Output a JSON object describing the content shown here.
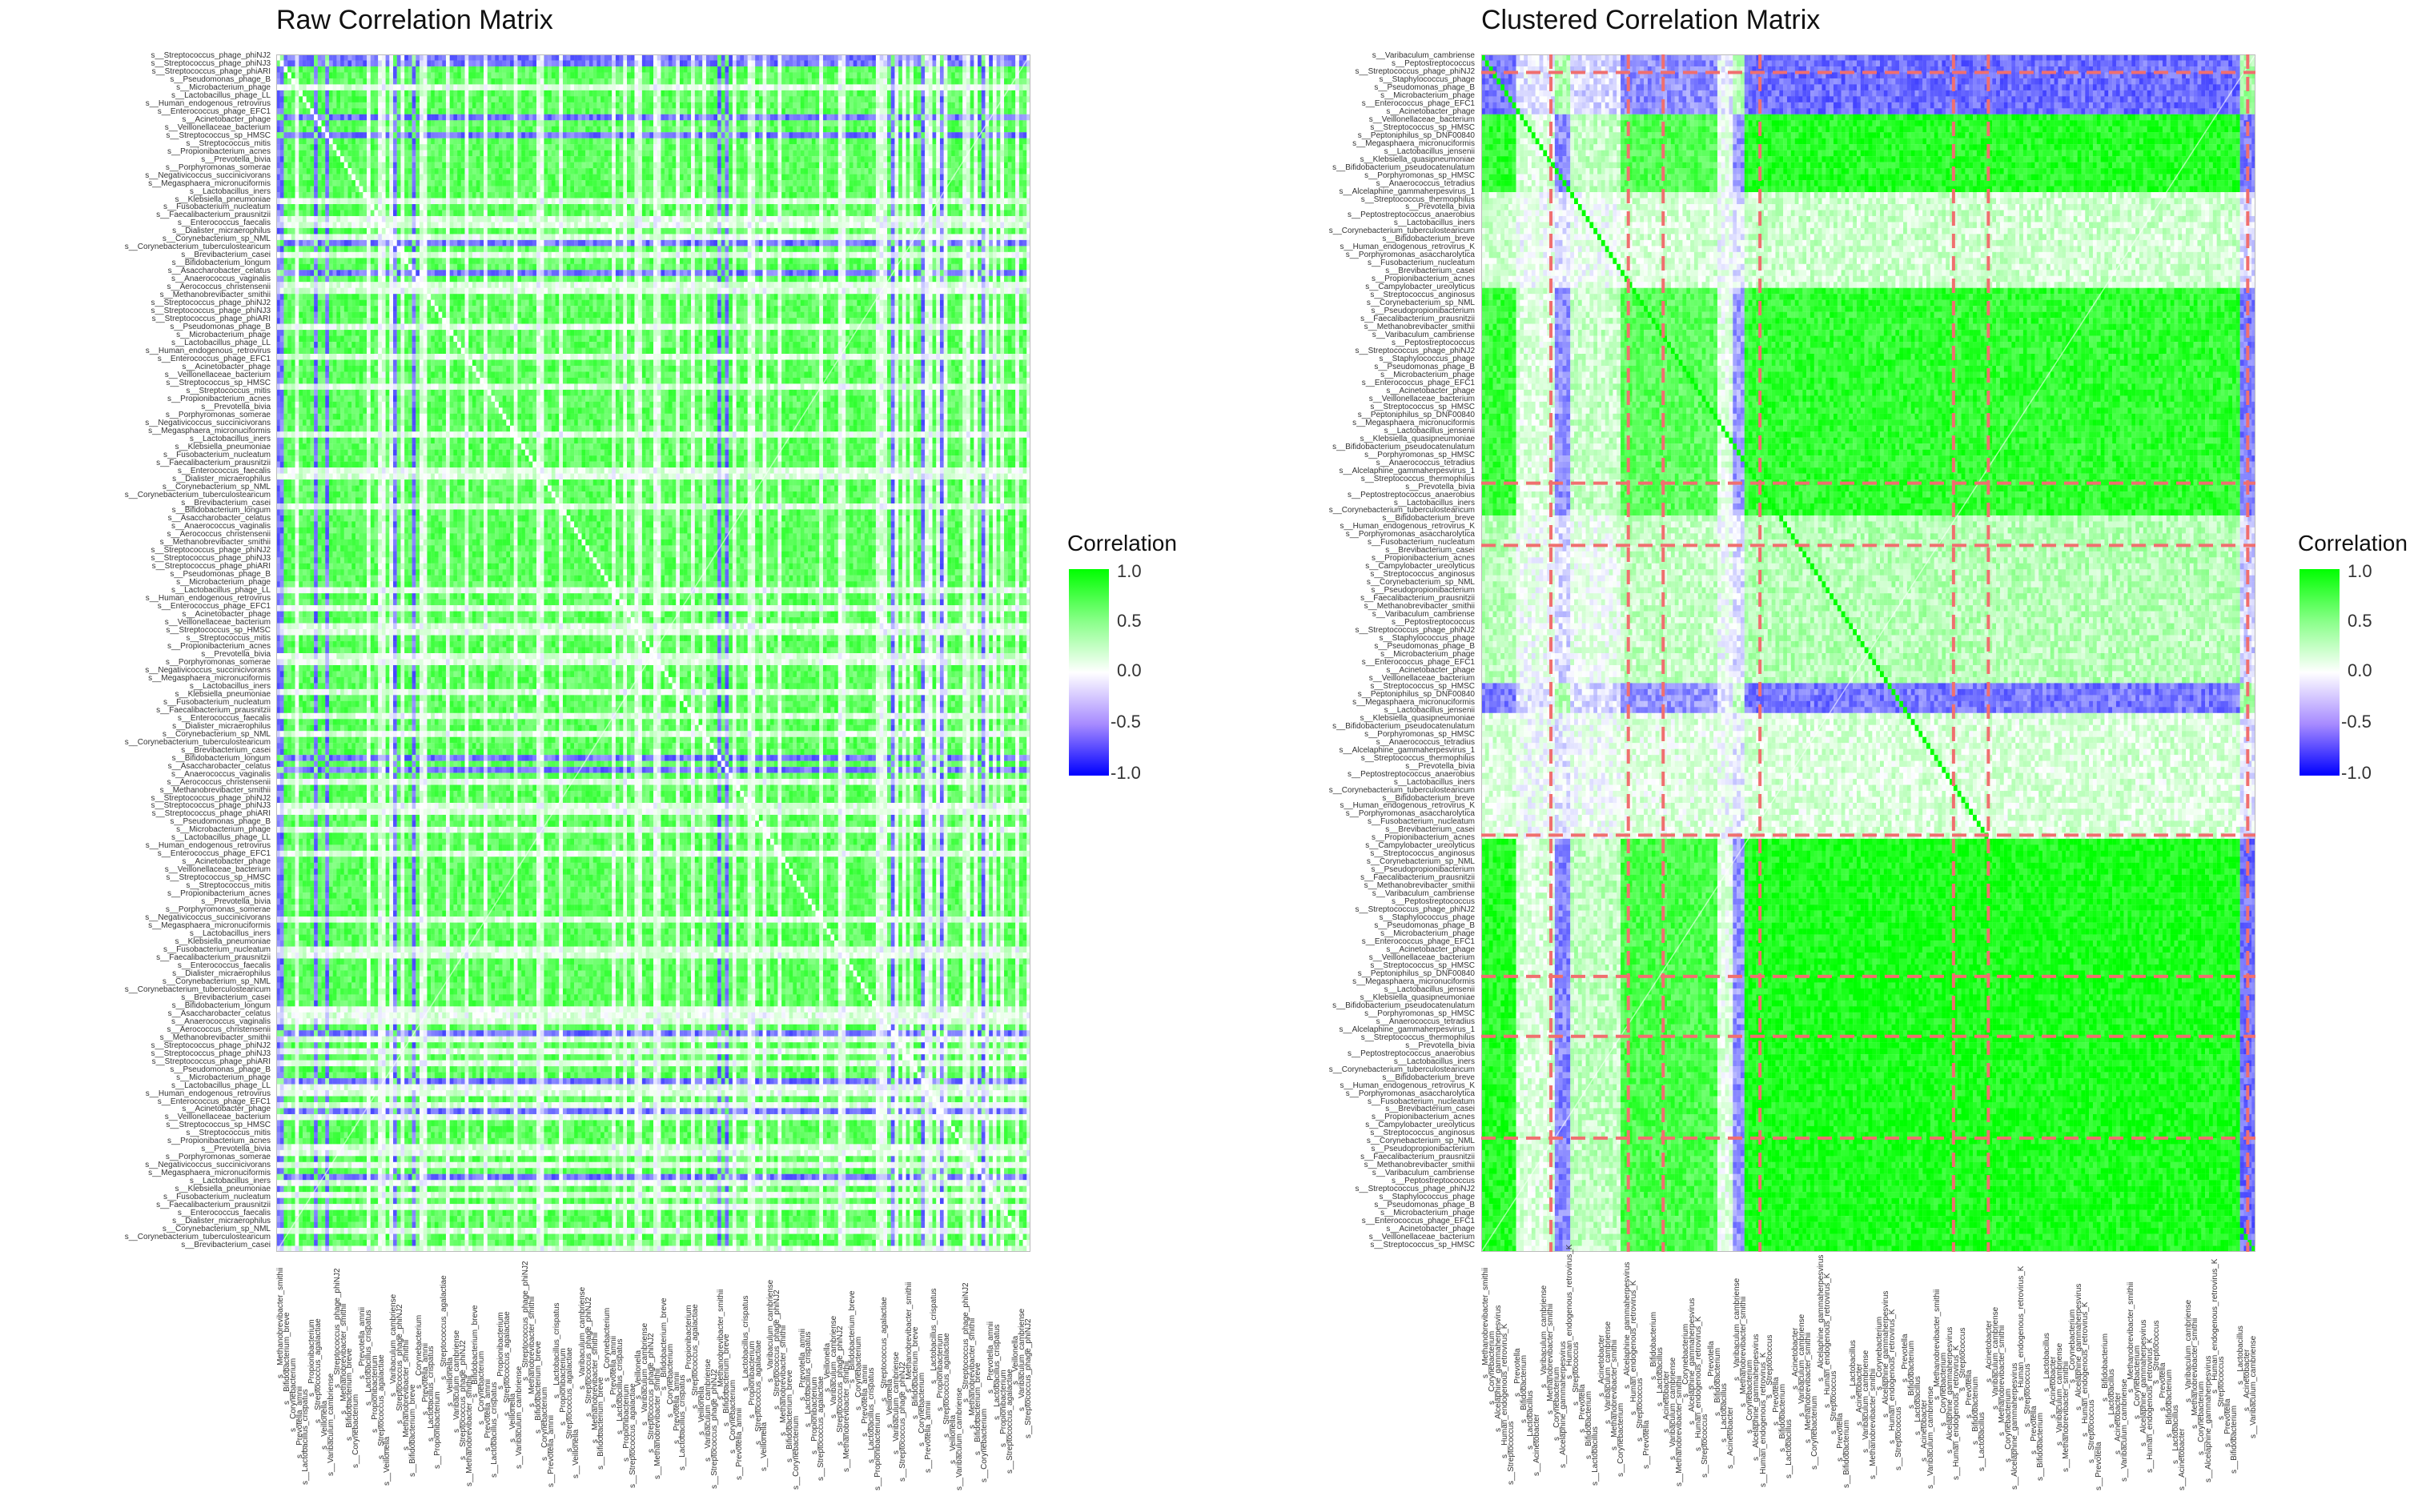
{
  "chart_data": [
    {
      "type": "heatmap",
      "title": "Raw Correlation Matrix",
      "n": 200,
      "colorscale": {
        "low": "#0000ff",
        "mid": "#ffffff",
        "high": "#00ff00",
        "limits": [
          -1,
          1
        ]
      },
      "legend": {
        "title": "Correlation",
        "ticks": [
          "1.0",
          "0.5",
          "0.0",
          "-0.5",
          "-1.0"
        ],
        "position": "right"
      },
      "row_labels": [
        "s__Streptococcus_phage_phiNJ2",
        "s__Streptococcus_phage_phiNJ3",
        "s__Streptococcus_phage_phiARI",
        "s__Pseudomonas_phage_B",
        "s__Microbacterium_phage",
        "s__Lactobacillus_phage_LL",
        "s__Human_endogenous_retrovirus",
        "s__Enterococcus_phage_EFC1",
        "s__Acinetobacter_phage",
        "s__Veillonellaceae_bacterium",
        "s__Streptococcus_sp_HMSC",
        "s__Streptococcus_mitis",
        "s__Propionibacterium_acnes",
        "s__Prevotella_bivia",
        "s__Porphyromonas_somerae",
        "s__Negativicoccus_succinicivorans",
        "s__Megasphaera_micronuciformis",
        "s__Lactobacillus_iners",
        "s__Klebsiella_pneumoniae",
        "s__Fusobacterium_nucleatum",
        "s__Faecalibacterium_prausnitzii",
        "s__Enterococcus_faecalis",
        "s__Dialister_micraerophilus",
        "s__Corynebacterium_sp_NML",
        "s__Corynebacterium_tuberculostearicum",
        "s__Brevibacterium_casei",
        "s__Bifidobacterium_longum",
        "s__Asaccharobacter_celatus",
        "s__Anaerococcus_vaginalis",
        "s__Aerococcus_christensenii",
        "s__Methanobrevibacter_smithii"
      ],
      "x_labels": [
        "s__Methanobrevibacter_smithii",
        "s__Bifidobacterium_breve",
        "s__Corynebacterium",
        "s__Prevotella_amnii",
        "s__Lactobacillus_crispatus",
        "s__Propionibacterium",
        "s__Streptococcus_agalactiae",
        "s__Veillonella",
        "s__Varibaculum_cambriense",
        "s__Streptococcus_phage_phiNJ2"
      ]
    },
    {
      "type": "heatmap",
      "title": "Clustered Correlation Matrix",
      "n": 200,
      "colorscale": {
        "low": "#0000ff",
        "mid": "#ffffff",
        "high": "#00ff00",
        "limits": [
          -1,
          1
        ]
      },
      "legend": {
        "title": "Correlation",
        "ticks": [
          "1.0",
          "0.5",
          "0.0",
          "-0.5",
          "-1.0"
        ],
        "position": "right"
      },
      "row_labels": [
        "s__Varibaculum_cambriense",
        "s__Peptostreptococcus",
        "s__Streptococcus_phage_phiNJ2",
        "s__Staphylococcus_phage",
        "s__Pseudomonas_phage_B",
        "s__Microbacterium_phage",
        "s__Enterococcus_phage_EFC1",
        "s__Acinetobacter_phage",
        "s__Veillonellaceae_bacterium",
        "s__Streptococcus_sp_HMSC",
        "s__Peptoniphilus_sp_DNF00840",
        "s__Megasphaera_micronuciformis",
        "s__Lactobacillus_jensenii",
        "s__Klebsiella_quasipneumoniae",
        "s__Bifidobacterium_pseudocatenulatum",
        "s__Porphyromonas_sp_HMSC",
        "s__Anaerococcus_tetradius",
        "s__Alcelaphine_gammaherpesvirus_1",
        "s__Streptococcus_thermophilus",
        "s__Prevotella_bivia",
        "s__Peptostreptococcus_anaerobius",
        "s__Lactobacillus_iners",
        "s__Corynebacterium_tuberculostearicum",
        "s__Bifidobacterium_breve",
        "s__Human_endogenous_retrovirus_K",
        "s__Porphyromonas_asaccharolytica",
        "s__Fusobacterium_nucleatum",
        "s__Brevibacterium_casei",
        "s__Propionibacterium_acnes",
        "s__Campylobacter_ureolyticus",
        "s__Streptococcus_anginosus",
        "s__Corynebacterium_sp_NML",
        "s__Pseudopropionibacterium",
        "s__Faecalibacterium_prausnitzii",
        "s__Methanobrevibacter_smithii"
      ],
      "x_labels": [
        "s__Methanobrevibacter_smithii",
        "s__Corynebacterium",
        "s__Alcelaphine_gammaherpesvirus",
        "s__Human_endogenous_retrovirus_K",
        "s__Streptococcus",
        "s__Prevotella",
        "s__Bifidobacterium",
        "s__Lactobacillus",
        "s__Acinetobacter",
        "s__Varibaculum_cambriense"
      ],
      "cluster_boundaries": [
        16,
        36,
        60,
        120,
        163,
        170,
        203,
        227,
        243,
        262,
        286,
        300
      ]
    }
  ]
}
